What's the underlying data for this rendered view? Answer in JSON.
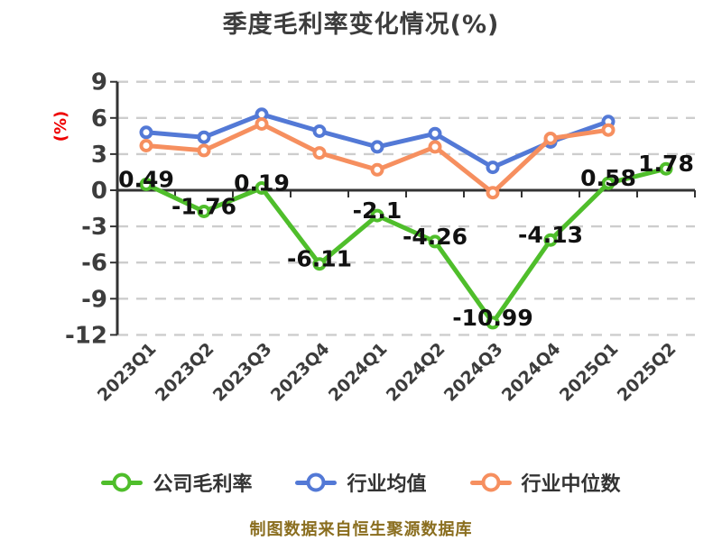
{
  "title": "季度毛利率变化情况(%)",
  "y_axis_unit": "(%)",
  "footer": "制图数据来自恒生聚源数据库",
  "colors": {
    "background": "#ffffff",
    "axis": "#333333",
    "gridline": "#cdcdcd",
    "title_text": "#3d3d3d",
    "tick_text": "#3d3d3d",
    "data_label_text": "#111111",
    "legend_text": "#333333",
    "footer_text": "#8a6e1f",
    "y_unit_text": "#ee0000",
    "marker_fill": "#ffffff"
  },
  "legend": [
    {
      "label": "公司毛利率",
      "color": "#4fbe2b"
    },
    {
      "label": "行业均值",
      "color": "#5379d6"
    },
    {
      "label": "行业中位数",
      "color": "#f68f5f"
    }
  ],
  "chart_data": {
    "type": "line",
    "title": "季度毛利率变化情况(%)",
    "categories": [
      "2023Q1",
      "2023Q2",
      "2023Q3",
      "2023Q4",
      "2024Q1",
      "2024Q2",
      "2024Q3",
      "2024Q4",
      "2025Q1",
      "2025Q2"
    ],
    "series": [
      {
        "name": "公司毛利率",
        "color": "#4fbe2b",
        "data_labels": true,
        "values": [
          0.49,
          -1.76,
          0.19,
          -6.11,
          -2.1,
          -4.26,
          -10.99,
          -4.13,
          0.58,
          1.78
        ]
      },
      {
        "name": "行业均值",
        "color": "#5379d6",
        "data_labels": false,
        "values": [
          4.8,
          4.4,
          6.3,
          4.9,
          3.6,
          4.7,
          1.9,
          4.0,
          5.7,
          null
        ]
      },
      {
        "name": "行业中位数",
        "color": "#f68f5f",
        "data_labels": false,
        "values": [
          3.7,
          3.3,
          5.5,
          3.1,
          1.7,
          3.6,
          -0.2,
          4.3,
          5.0,
          null
        ]
      }
    ],
    "xlabel": "",
    "ylabel": "(%)",
    "ylim": [
      -12,
      9
    ],
    "y_ticks": [
      9,
      6,
      3,
      0,
      -3,
      -6,
      -9,
      -12
    ],
    "grid": "dashed-horizontal",
    "legend_position": "bottom",
    "x_label_rotation": -45,
    "marker": "circle-white-fill"
  }
}
